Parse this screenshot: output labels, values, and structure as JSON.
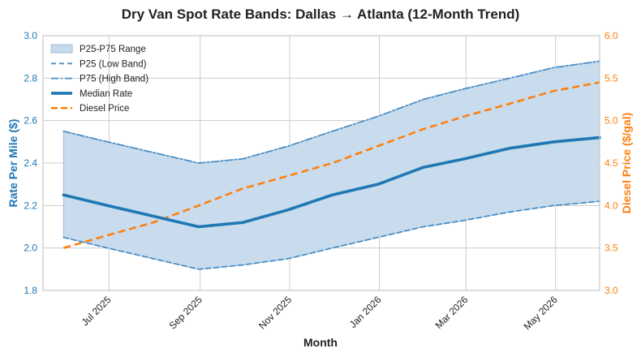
{
  "chart_data": {
    "type": "line",
    "title": "Dry Van Spot Rate Bands: Dallas → Atlanta (12-Month Trend)",
    "xlabel": "Month",
    "ylabel": "Rate Per Mile ($)",
    "y2label": "Diesel Price ($/gal)",
    "ylim": [
      1.8,
      3.0
    ],
    "y2lim": [
      3.0,
      6.0
    ],
    "yticks": [
      "1.8",
      "2.0",
      "2.2",
      "2.4",
      "2.6",
      "2.8",
      "3.0"
    ],
    "y2ticks": [
      "3.0",
      "3.5",
      "4.0",
      "4.5",
      "5.0",
      "5.5",
      "6.0"
    ],
    "xlim": [
      "2025-05-17",
      "2026-05-31"
    ],
    "xticks": [
      {
        "date": "2025-07-01",
        "label": "Jul 2025"
      },
      {
        "date": "2025-09-01",
        "label": "Sep 2025"
      },
      {
        "date": "2025-11-01",
        "label": "Nov 2025"
      },
      {
        "date": "2026-01-01",
        "label": "Jan 2026"
      },
      {
        "date": "2026-03-01",
        "label": "Mar 2026"
      },
      {
        "date": "2026-05-01",
        "label": "May 2026"
      }
    ],
    "x": [
      "2025-05-31",
      "2025-06-30",
      "2025-07-31",
      "2025-08-31",
      "2025-09-30",
      "2025-10-31",
      "2025-11-30",
      "2025-12-31",
      "2026-01-31",
      "2026-02-28",
      "2026-03-31",
      "2026-04-30",
      "2026-05-31"
    ],
    "series": [
      {
        "name": "P25-P75 Range",
        "kind": "band",
        "color": "#c5daec"
      },
      {
        "name": "P25 (Low Band)",
        "kind": "dashed",
        "color": "#4a8ec6",
        "axis": "left",
        "values": [
          2.05,
          2.0,
          1.95,
          1.9,
          1.92,
          1.95,
          2.0,
          2.05,
          2.1,
          2.13,
          2.17,
          2.2,
          2.22
        ]
      },
      {
        "name": "P75 (High Band)",
        "kind": "dashdot",
        "color": "#4a8ec6",
        "axis": "left",
        "values": [
          2.55,
          2.5,
          2.45,
          2.4,
          2.42,
          2.48,
          2.55,
          2.62,
          2.7,
          2.75,
          2.8,
          2.85,
          2.88
        ]
      },
      {
        "name": "Median Rate",
        "kind": "solid",
        "color": "#1f77b4",
        "axis": "left",
        "values": [
          2.25,
          2.2,
          2.15,
          2.1,
          2.12,
          2.18,
          2.25,
          2.3,
          2.38,
          2.42,
          2.47,
          2.5,
          2.52
        ]
      },
      {
        "name": "Diesel Price",
        "kind": "dashed-thick",
        "color": "#ff7f0e",
        "axis": "right",
        "values": [
          3.5,
          3.65,
          3.8,
          4.0,
          4.2,
          4.35,
          4.5,
          4.7,
          4.9,
          5.05,
          5.2,
          5.35,
          5.45
        ]
      }
    ],
    "grid": true,
    "legend": "top-left",
    "colors": {
      "left_axis": "#1f77b4",
      "right_axis": "#ff7f0e"
    }
  }
}
